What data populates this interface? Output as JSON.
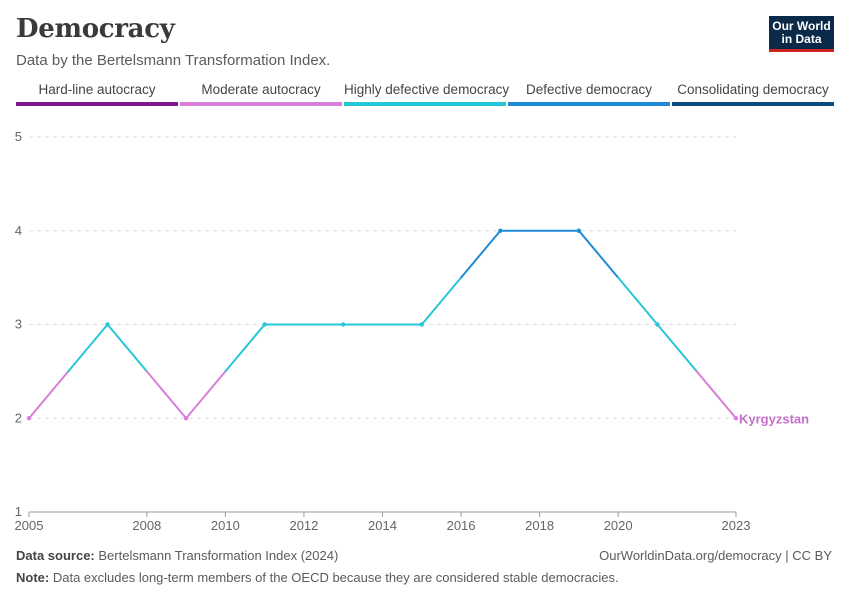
{
  "header": {
    "title": "Democracy",
    "subtitle": "Data by the Bertelsmann Transformation Index.",
    "logo_line1": "Our World",
    "logo_line2": "in Data"
  },
  "legend": [
    {
      "label": "Hard-line autocracy",
      "color": "#7a1a8c"
    },
    {
      "label": "Moderate autocracy",
      "color": "#d77fdb"
    },
    {
      "label": "Highly defective democracy",
      "color": "#27c6d6"
    },
    {
      "label": "Defective democracy",
      "color": "#1f8ad6"
    },
    {
      "label": "Consolidating democracy",
      "color": "#0e4a7e"
    }
  ],
  "chart_data": {
    "type": "line",
    "title": "Democracy",
    "x_ticks": [
      "2005",
      "2008",
      "2010",
      "2012",
      "2014",
      "2016",
      "2018",
      "2020",
      "2023"
    ],
    "y_ticks": [
      "1",
      "2",
      "3",
      "4",
      "5"
    ],
    "xlim": [
      2005,
      2023
    ],
    "ylim": [
      1,
      5
    ],
    "grid": "horizontal dashed",
    "color_bands": [
      {
        "from": 1.5,
        "to": 2.5,
        "color": "#d77fdb"
      },
      {
        "from": 2.5,
        "to": 3.5,
        "color": "#27c6d6"
      },
      {
        "from": 3.5,
        "to": 4.5,
        "color": "#1f8ad6"
      }
    ],
    "series": [
      {
        "name": "Kyrgyzstan",
        "label_color": "#c46fcc",
        "x": [
          2005,
          2007,
          2009,
          2011,
          2013,
          2015,
          2017,
          2019,
          2021,
          2023
        ],
        "values": [
          2,
          3,
          2,
          3,
          3,
          3,
          4,
          4,
          3,
          2
        ]
      }
    ]
  },
  "footer": {
    "source_label": "Data source:",
    "source_text": "Bertelsmann Transformation Index (2024)",
    "note_label": "Note:",
    "note_text": "Data excludes long-term members of the OECD because they are considered stable democracies.",
    "url": "OurWorldinData.org/democracy | CC BY"
  }
}
